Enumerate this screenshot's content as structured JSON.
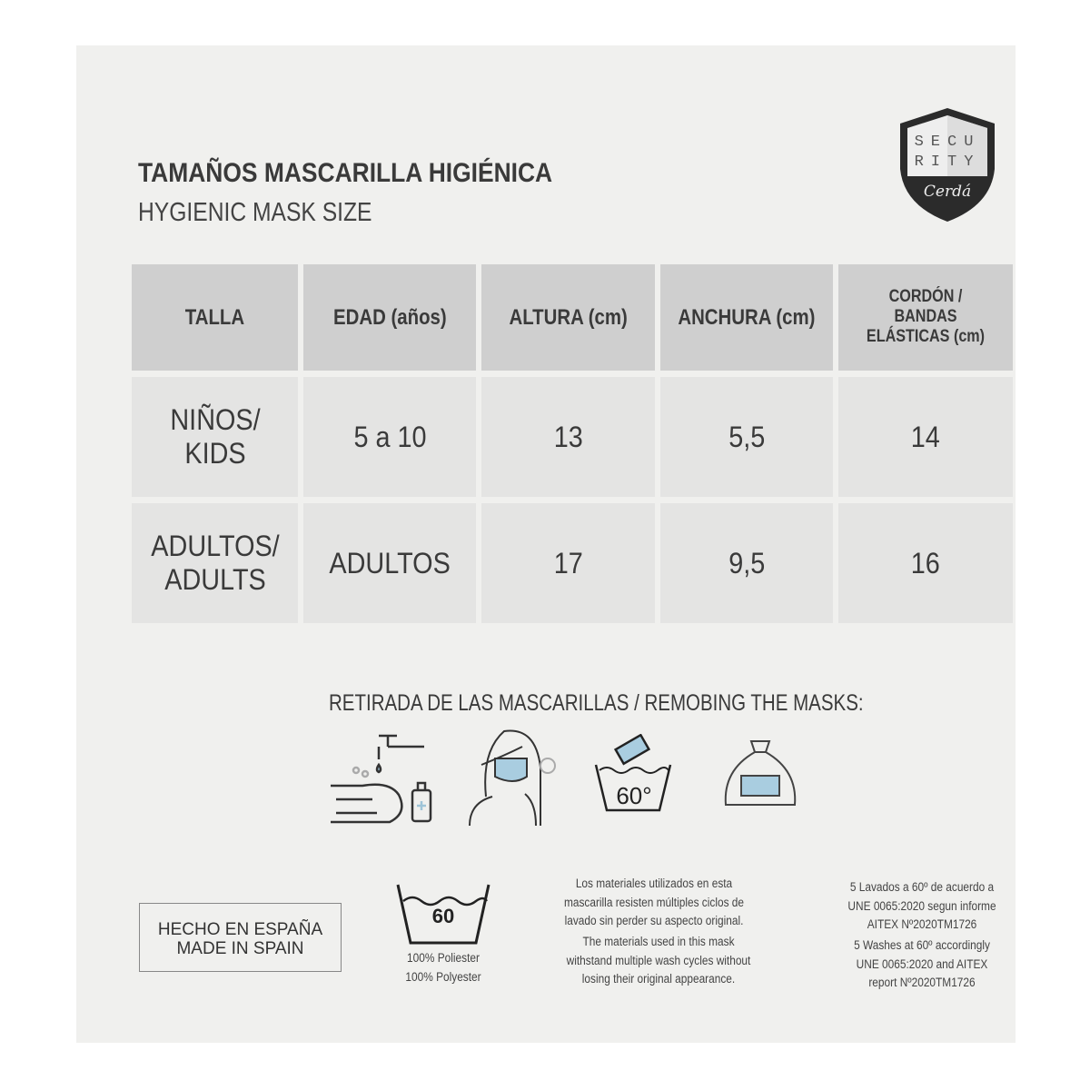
{
  "header": {
    "title": "TAMAÑOS MASCARILLA HIGIÉNICA",
    "subtitle": "HYGIENIC MASK SIZE"
  },
  "logo": {
    "text": "SECURITY",
    "brand": "Cerdá"
  },
  "table": {
    "columns": [
      "TALLA",
      "EDAD (años)",
      "ALTURA (cm)",
      "ANCHURA (cm)",
      "CORDÓN / BANDAS ELÁSTICAS (cm)"
    ],
    "rows": [
      [
        "NIÑOS/ KIDS",
        "5 a 10",
        "13",
        "5,5",
        "14"
      ],
      [
        "ADULTOS/ ADULTS",
        "ADULTOS",
        "17",
        "9,5",
        "16"
      ]
    ]
  },
  "removal": {
    "title": "RETIRADA DE LAS MASCARILLAS / REMOBING THE MASKS:",
    "wash_temp": "60°",
    "icons": [
      "hand-washing-icon",
      "remove-mask-icon",
      "wash-60-icon",
      "storage-bag-icon"
    ]
  },
  "footer": {
    "made_es": "HECHO EN ESPAÑA",
    "made_en": "MADE IN SPAIN",
    "wash_symbol": "60",
    "material_es": "100% Poliester",
    "material_en": "100% Polyester",
    "materials_es": "Los materiales utilizados en esta mascarilla resisten múltiples ciclos de lavado sin perder su aspecto original.",
    "materials_en": "The materials used in this mask withstand multiple wash cycles without losing their original appearance.",
    "washes_es": "5 Lavados a 60º de acuerdo a UNE 0065:2020 segun informe AITEX Nº2020TM1726",
    "washes_en": "5 Washes at 60º accordingly UNE 0065:2020 and AITEX report Nº2020TM1726"
  },
  "colors": {
    "panel": "#f0f0ee",
    "header_cell": "#cfcfcf",
    "body_cell": "#e4e4e3",
    "mask_blue": "#a9cde0"
  }
}
